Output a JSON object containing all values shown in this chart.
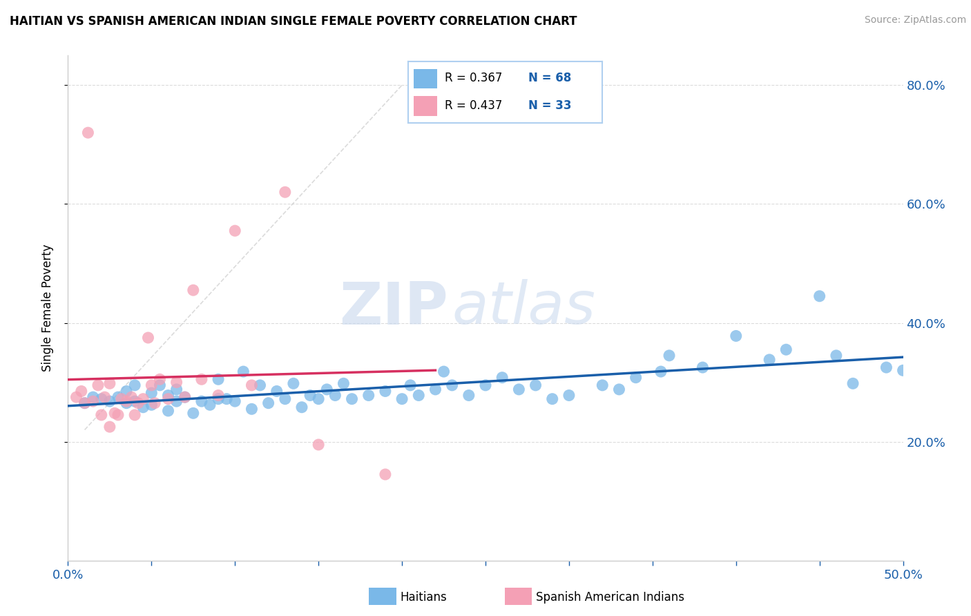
{
  "title": "HAITIAN VS SPANISH AMERICAN INDIAN SINGLE FEMALE POVERTY CORRELATION CHART",
  "source": "Source: ZipAtlas.com",
  "ylabel": "Single Female Poverty",
  "xlim": [
    0.0,
    0.5
  ],
  "ylim": [
    0.0,
    0.85
  ],
  "yticks": [
    0.2,
    0.4,
    0.6,
    0.8
  ],
  "ytick_labels": [
    "20.0%",
    "40.0%",
    "60.0%",
    "80.0%"
  ],
  "xticks": [
    0.0,
    0.05,
    0.1,
    0.15,
    0.2,
    0.25,
    0.3,
    0.35,
    0.4,
    0.45,
    0.5
  ],
  "xtick_labels": [
    "0.0%",
    "",
    "",
    "",
    "",
    "",
    "",
    "",
    "",
    "",
    "50.0%"
  ],
  "blue_R": 0.367,
  "blue_N": 68,
  "pink_R": 0.437,
  "pink_N": 33,
  "blue_color": "#7ab8e8",
  "pink_color": "#f4a0b5",
  "blue_line_color": "#1a5faa",
  "pink_line_color": "#d63060",
  "watermark_zip": "ZIP",
  "watermark_atlas": "atlas",
  "legend1_label": "Haitians",
  "legend2_label": "Spanish American Indians",
  "blue_x": [
    0.01,
    0.015,
    0.02,
    0.025,
    0.03,
    0.035,
    0.035,
    0.04,
    0.04,
    0.045,
    0.05,
    0.05,
    0.055,
    0.06,
    0.06,
    0.065,
    0.065,
    0.07,
    0.075,
    0.08,
    0.085,
    0.09,
    0.09,
    0.095,
    0.1,
    0.105,
    0.11,
    0.115,
    0.12,
    0.125,
    0.13,
    0.135,
    0.14,
    0.145,
    0.15,
    0.155,
    0.16,
    0.165,
    0.17,
    0.18,
    0.19,
    0.2,
    0.205,
    0.21,
    0.22,
    0.225,
    0.23,
    0.24,
    0.25,
    0.26,
    0.27,
    0.28,
    0.29,
    0.3,
    0.32,
    0.33,
    0.34,
    0.355,
    0.36,
    0.38,
    0.4,
    0.42,
    0.43,
    0.45,
    0.46,
    0.47,
    0.49,
    0.5
  ],
  "blue_y": [
    0.265,
    0.275,
    0.272,
    0.268,
    0.275,
    0.265,
    0.285,
    0.268,
    0.295,
    0.258,
    0.262,
    0.282,
    0.295,
    0.252,
    0.278,
    0.268,
    0.288,
    0.275,
    0.248,
    0.268,
    0.262,
    0.272,
    0.305,
    0.272,
    0.268,
    0.318,
    0.255,
    0.295,
    0.265,
    0.285,
    0.272,
    0.298,
    0.258,
    0.278,
    0.272,
    0.288,
    0.278,
    0.298,
    0.272,
    0.278,
    0.285,
    0.272,
    0.295,
    0.278,
    0.288,
    0.318,
    0.295,
    0.278,
    0.295,
    0.308,
    0.288,
    0.295,
    0.272,
    0.278,
    0.295,
    0.288,
    0.308,
    0.318,
    0.345,
    0.325,
    0.378,
    0.338,
    0.355,
    0.445,
    0.345,
    0.298,
    0.325,
    0.32
  ],
  "pink_x": [
    0.005,
    0.008,
    0.01,
    0.012,
    0.015,
    0.018,
    0.02,
    0.022,
    0.025,
    0.025,
    0.028,
    0.03,
    0.032,
    0.035,
    0.038,
    0.04,
    0.042,
    0.045,
    0.048,
    0.05,
    0.052,
    0.055,
    0.06,
    0.065,
    0.07,
    0.075,
    0.08,
    0.09,
    0.1,
    0.11,
    0.13,
    0.15,
    0.19
  ],
  "pink_y": [
    0.275,
    0.285,
    0.265,
    0.72,
    0.268,
    0.295,
    0.245,
    0.275,
    0.225,
    0.298,
    0.248,
    0.245,
    0.272,
    0.268,
    0.275,
    0.245,
    0.265,
    0.272,
    0.375,
    0.295,
    0.265,
    0.305,
    0.272,
    0.3,
    0.275,
    0.455,
    0.305,
    0.278,
    0.555,
    0.295,
    0.62,
    0.195,
    0.145
  ]
}
